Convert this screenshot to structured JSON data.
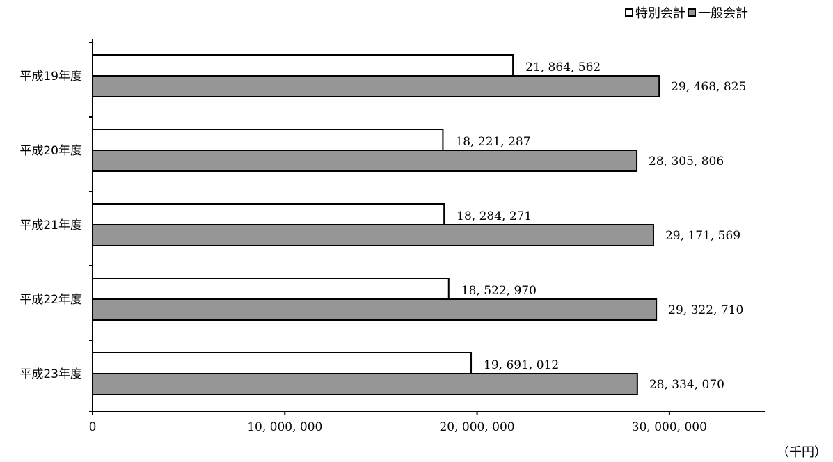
{
  "chart_data": {
    "type": "bar",
    "orientation": "horizontal",
    "unit_label": "（千円）",
    "categories": [
      "平成19年度",
      "平成20年度",
      "平成21年度",
      "平成22年度",
      "平成23年度"
    ],
    "series": [
      {
        "name": "特別会計",
        "color": "#ffffff",
        "values": [
          21864562,
          18221287,
          18284271,
          18522970,
          19691012
        ],
        "labels": [
          "21, 864, 562",
          "18, 221, 287",
          "18, 284, 271",
          "18, 522, 970",
          "19, 691, 012"
        ]
      },
      {
        "name": "一般会計",
        "color": "#969696",
        "values": [
          29468825,
          28305806,
          29171569,
          29322710,
          28334070
        ],
        "labels": [
          "29, 468, 825",
          "28, 305, 806",
          "29, 171, 569",
          "29, 322, 710",
          "28, 334, 070"
        ]
      }
    ],
    "xlim": [
      0,
      35000000
    ],
    "xticks": [
      0,
      10000000,
      20000000,
      30000000
    ],
    "xtick_labels": [
      "0",
      "10, 000, 000",
      "20, 000, 000",
      "30, 000, 000"
    ],
    "grid": false,
    "legend_position": "top-right"
  }
}
